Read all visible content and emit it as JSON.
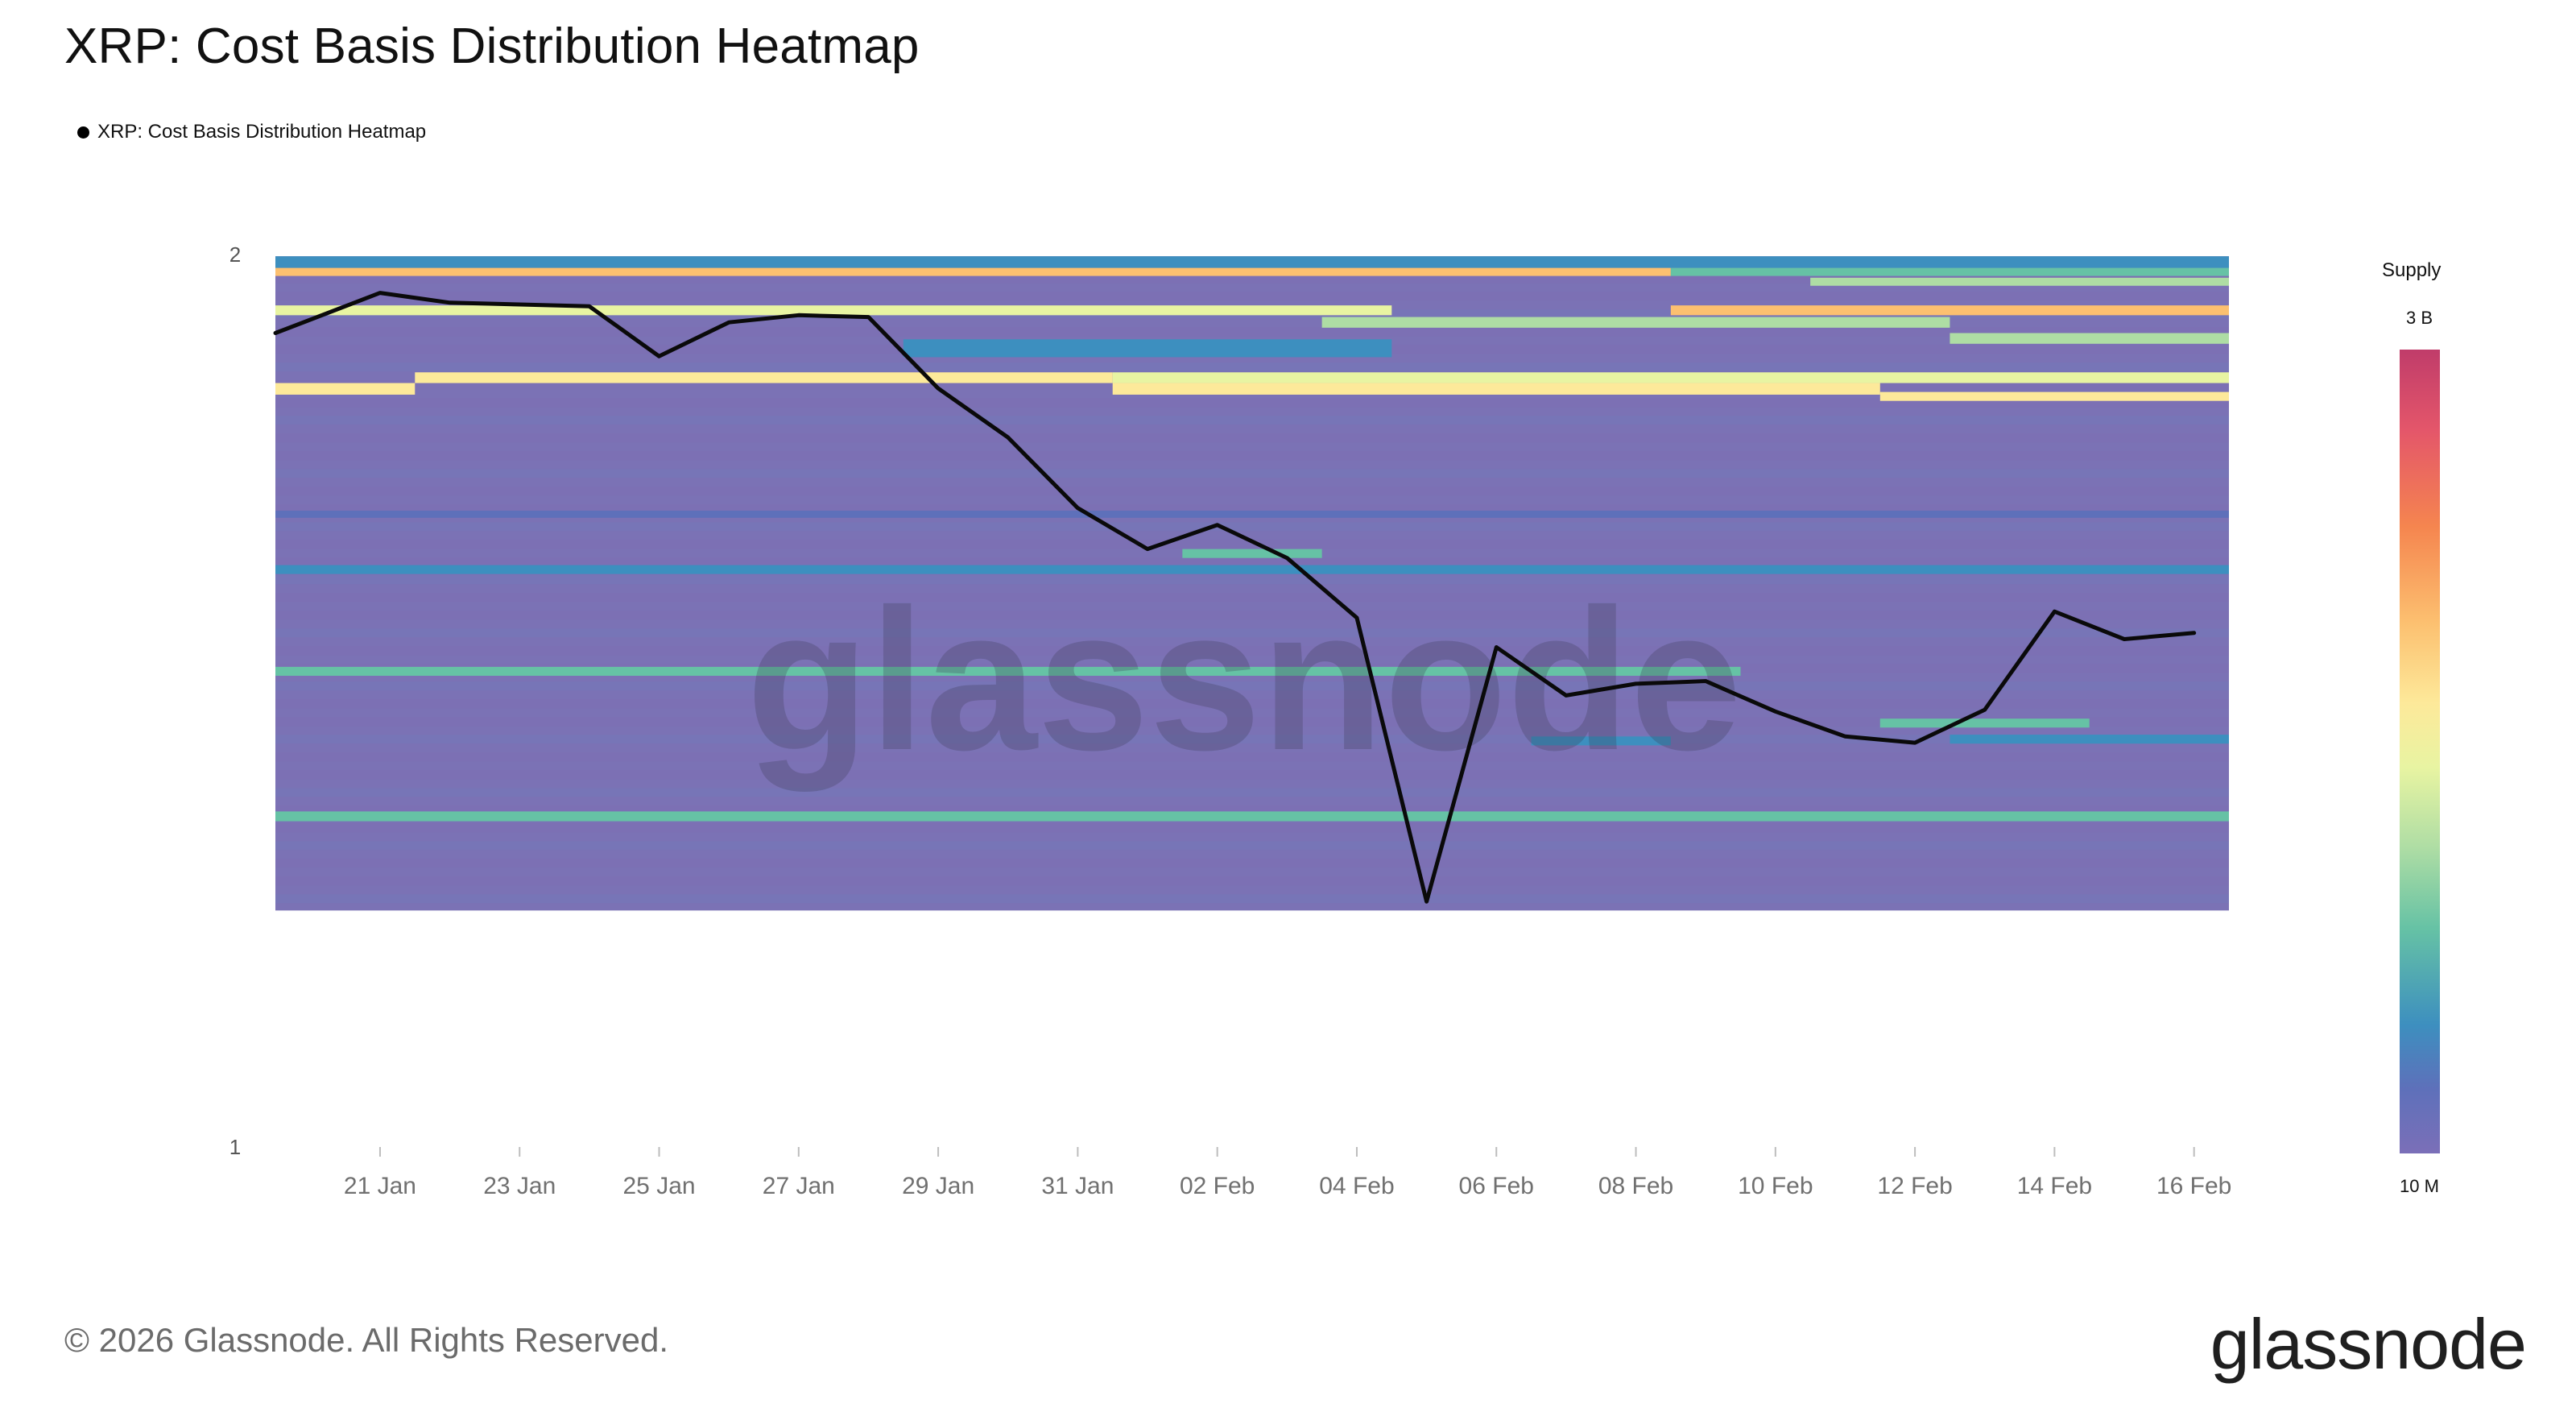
{
  "title": "XRP: Cost Basis Distribution Heatmap",
  "legend_label": "XRP: Cost Basis Distribution Heatmap",
  "colorbar": {
    "title": "Supply",
    "max_label": "3 B",
    "min_label": "10 M"
  },
  "footer": {
    "copyright": "© 2026 Glassnode. All Rights Reserved.",
    "brand": "glassnode",
    "watermark": "glassnode"
  },
  "chart_data": {
    "type": "heatmap",
    "ylim": [
      1,
      2
    ],
    "yticks": [
      {
        "label": "2",
        "value": 2
      },
      {
        "label": "1",
        "value": 1
      }
    ],
    "x_tick_labels": [
      "21 Jan",
      "23 Jan",
      "25 Jan",
      "27 Jan",
      "29 Jan",
      "31 Jan",
      "02 Feb",
      "04 Feb",
      "06 Feb",
      "08 Feb",
      "10 Feb",
      "12 Feb",
      "14 Feb",
      "16 Feb"
    ],
    "dates": [
      "20 Jan",
      "21 Jan",
      "22 Jan",
      "23 Jan",
      "24 Jan",
      "25 Jan",
      "26 Jan",
      "27 Jan",
      "28 Jan",
      "29 Jan",
      "30 Jan",
      "31 Jan",
      "01 Feb",
      "02 Feb",
      "03 Feb",
      "04 Feb",
      "05 Feb",
      "06 Feb",
      "07 Feb",
      "08 Feb",
      "09 Feb",
      "10 Feb",
      "11 Feb",
      "12 Feb",
      "13 Feb",
      "14 Feb",
      "15 Feb",
      "16 Feb"
    ],
    "price_series": {
      "values": [
        1.912,
        1.957,
        1.946,
        1.944,
        1.942,
        1.886,
        1.924,
        1.932,
        1.93,
        1.85,
        1.795,
        1.716,
        1.67,
        1.697,
        1.66,
        1.593,
        1.275,
        1.56,
        1.506,
        1.519,
        1.522,
        1.488,
        1.46,
        1.453,
        1.49,
        1.6,
        1.569,
        1.576
      ]
    },
    "heatmap_range": [
      1.265,
      1.998
    ],
    "color_scale": {
      "low": "10 M",
      "high": "3 B",
      "colors": [
        "#7b72b5",
        "#5e70ba",
        "#3d8fbf",
        "#66c2a5",
        "#aedda4",
        "#e8f4a2",
        "#fde99a",
        "#fcc070"
      ]
    },
    "bands": [
      {
        "low": 1.985,
        "high": 1.998,
        "x0": "20 Jan",
        "x1": "16 Feb",
        "level": 2
      },
      {
        "low": 1.976,
        "high": 1.985,
        "x0": "20 Jan",
        "x1": "08 Feb",
        "level": 7
      },
      {
        "low": 1.976,
        "high": 1.985,
        "x0": "09 Feb",
        "x1": "16 Feb",
        "level": 3
      },
      {
        "low": 1.965,
        "high": 1.974,
        "x0": "11 Feb",
        "x1": "16 Feb",
        "level": 4
      },
      {
        "low": 1.932,
        "high": 1.943,
        "x0": "20 Jan",
        "x1": "04 Feb",
        "level": 5
      },
      {
        "low": 1.932,
        "high": 1.943,
        "x0": "09 Feb",
        "x1": "16 Feb",
        "level": 7
      },
      {
        "low": 1.918,
        "high": 1.93,
        "x0": "04 Feb",
        "x1": "12 Feb",
        "level": 4
      },
      {
        "low": 1.9,
        "high": 1.912,
        "x0": "13 Feb",
        "x1": "16 Feb",
        "level": 4
      },
      {
        "low": 1.885,
        "high": 1.905,
        "x0": "29 Jan",
        "x1": "04 Feb",
        "level": 2
      },
      {
        "low": 1.856,
        "high": 1.868,
        "x0": "22 Jan",
        "x1": "31 Jan",
        "level": 6
      },
      {
        "low": 1.856,
        "high": 1.868,
        "x0": "01 Feb",
        "x1": "16 Feb",
        "level": 5
      },
      {
        "low": 1.843,
        "high": 1.856,
        "x0": "20 Jan",
        "x1": "21 Jan",
        "level": 6
      },
      {
        "low": 1.843,
        "high": 1.856,
        "x0": "01 Feb",
        "x1": "11 Feb",
        "level": 6
      },
      {
        "low": 1.836,
        "high": 1.846,
        "x0": "12 Feb",
        "x1": "16 Feb",
        "level": 6
      },
      {
        "low": 1.705,
        "high": 1.713,
        "x0": "20 Jan",
        "x1": "16 Feb",
        "level": 1
      },
      {
        "low": 1.66,
        "high": 1.67,
        "x0": "02 Feb",
        "x1": "03 Feb",
        "level": 3
      },
      {
        "low": 1.642,
        "high": 1.652,
        "x0": "20 Jan",
        "x1": "16 Feb",
        "level": 2
      },
      {
        "low": 1.528,
        "high": 1.538,
        "x0": "20 Jan",
        "x1": "09 Feb",
        "level": 3
      },
      {
        "low": 1.47,
        "high": 1.48,
        "x0": "12 Feb",
        "x1": "14 Feb",
        "level": 3
      },
      {
        "low": 1.45,
        "high": 1.46,
        "x0": "07 Feb",
        "x1": "08 Feb",
        "level": 2
      },
      {
        "low": 1.452,
        "high": 1.462,
        "x0": "13 Feb",
        "x1": "16 Feb",
        "level": 2
      },
      {
        "low": 1.365,
        "high": 1.376,
        "x0": "20 Jan",
        "x1": "16 Feb",
        "level": 3
      }
    ]
  }
}
